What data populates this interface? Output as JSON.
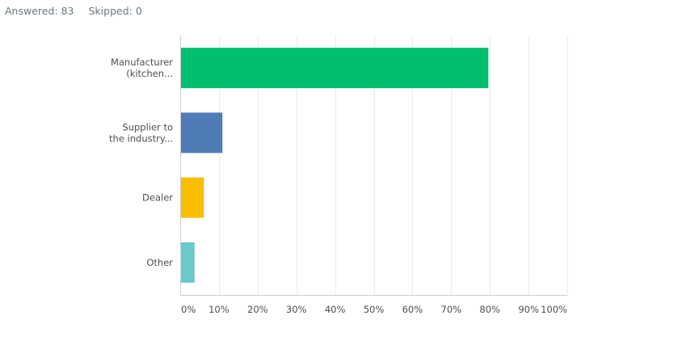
{
  "summary": {
    "answered_label": "Answered:",
    "answered_count": "83",
    "skipped_label": "Skipped:",
    "skipped_count": "0"
  },
  "chart_data": {
    "type": "bar",
    "orientation": "horizontal",
    "categories": [
      [
        "Manufacturer",
        "(kitchen..."
      ],
      [
        "Supplier to",
        "the industry..."
      ],
      [
        "Dealer"
      ],
      [
        "Other"
      ]
    ],
    "values": [
      79.5,
      10.8,
      6.0,
      3.6
    ],
    "colors": [
      "#00bf6f",
      "#507cb6",
      "#f9be00",
      "#6bc8cd"
    ],
    "xlim": [
      0,
      100
    ],
    "xticks": [
      "0%",
      "10%",
      "20%",
      "30%",
      "40%",
      "50%",
      "60%",
      "70%",
      "80%",
      "90%",
      "100%"
    ],
    "grid": true,
    "legend": "none"
  }
}
